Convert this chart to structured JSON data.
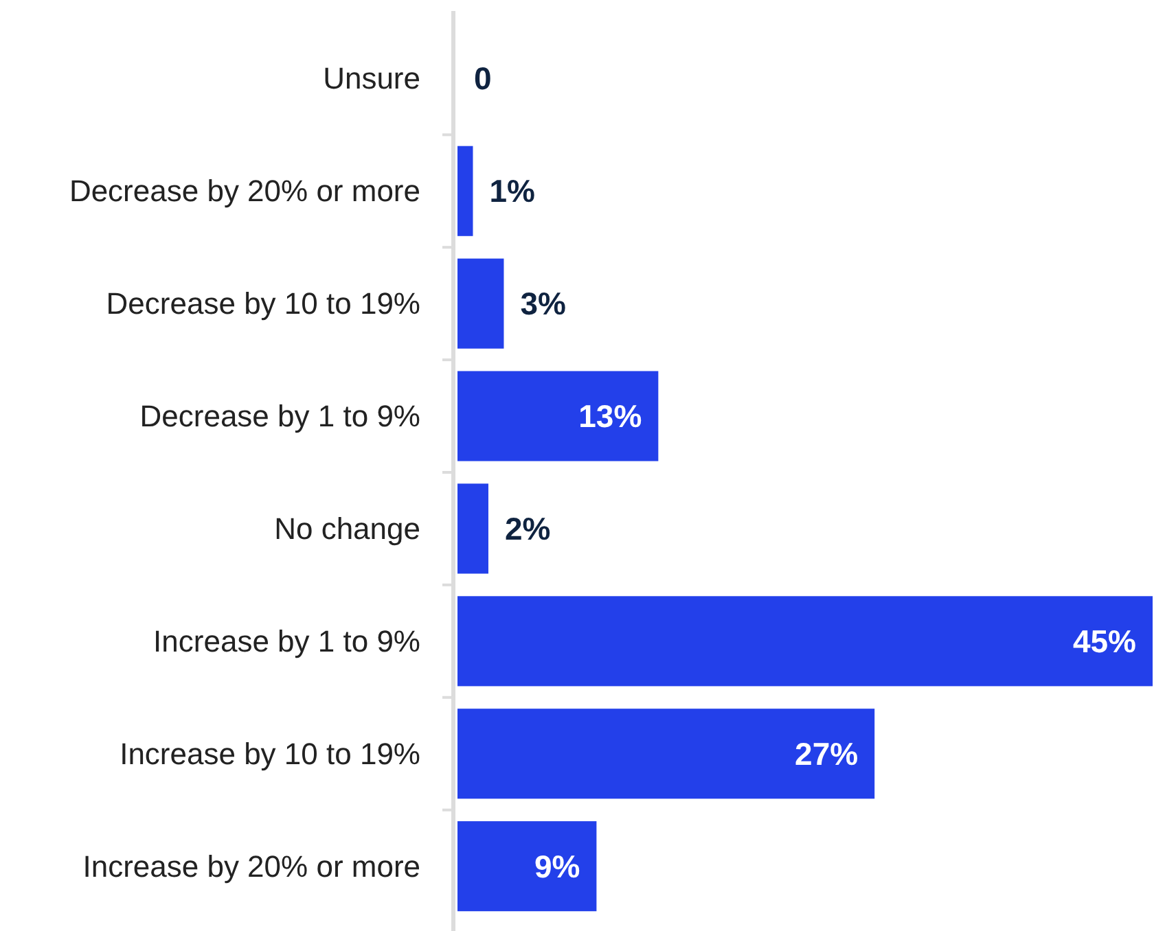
{
  "chart_data": {
    "type": "bar",
    "orientation": "horizontal",
    "categories": [
      "Unsure",
      "Decrease by 20% or more",
      "Decrease by 10 to 19%",
      "Decrease by 1 to 9%",
      "No change",
      "Increase by 1 to 9%",
      "Increase by 10 to 19%",
      "Increase by 20% or more"
    ],
    "values": [
      0,
      1,
      3,
      13,
      2,
      45,
      27,
      9
    ],
    "value_labels": [
      "0",
      "1%",
      "3%",
      "13%",
      "2%",
      "45%",
      "27%",
      "9%"
    ],
    "color": "#2340ea"
  }
}
